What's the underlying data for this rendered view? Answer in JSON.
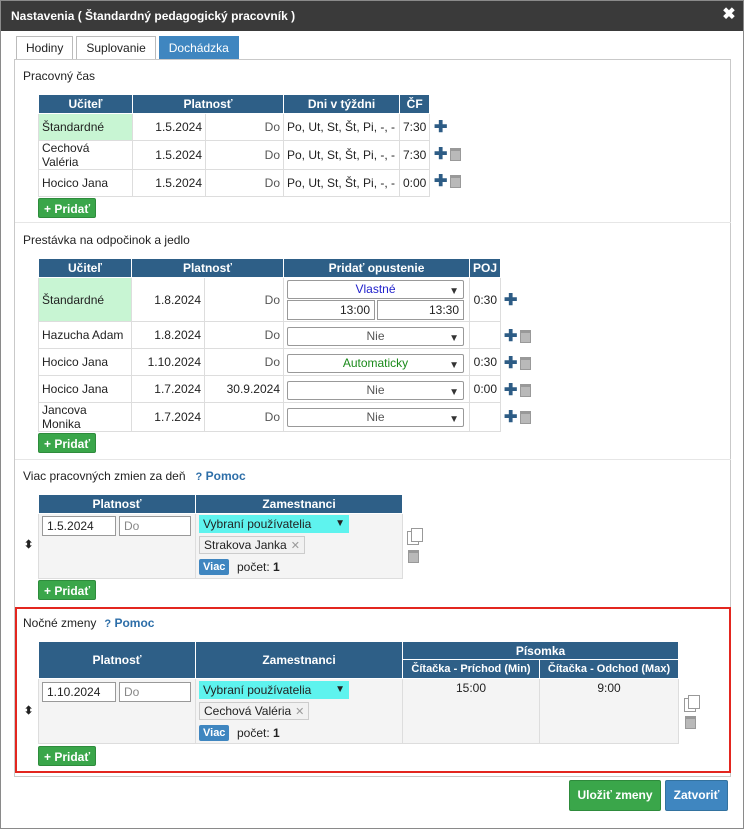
{
  "dialog": {
    "title": "Nastavenia ( Štandardný pedagogický pracovník )"
  },
  "tabs": [
    {
      "label": "Hodiny"
    },
    {
      "label": "Suplovanie"
    },
    {
      "label": "Dochádzka"
    }
  ],
  "work_time": {
    "title": "Pracovný čas",
    "headers": {
      "teacher": "Učiteľ",
      "validity": "Platnosť",
      "days": "Dni v týždni",
      "cf": "ČF"
    },
    "rows": [
      {
        "teacher": "Štandardné",
        "from": "1.5.2024",
        "to": "Do",
        "days": "Po, Ut, St, Št, Pi, -, -",
        "cf": "7:30"
      },
      {
        "teacher": "Cechová Valéria",
        "from": "1.5.2024",
        "to": "Do",
        "days": "Po, Ut, St, Št, Pi, -, -",
        "cf": "7:30"
      },
      {
        "teacher": "Hocico Jana",
        "from": "1.5.2024",
        "to": "Do",
        "days": "Po, Ut, St, Št, Pi, -, -",
        "cf": "0:00"
      }
    ],
    "add_label": "+ Pridať"
  },
  "break": {
    "title": "Prestávka na odpočinok a jedlo",
    "headers": {
      "teacher": "Učiteľ",
      "validity": "Platnosť",
      "add_leave": "Pridať opustenie",
      "poj": "POJ"
    },
    "rows": [
      {
        "teacher": "Štandardné",
        "from": "1.8.2024",
        "to": "Do",
        "select": "Vlastné",
        "time_from": "13:00",
        "time_to": "13:30",
        "poj": "0:30"
      },
      {
        "teacher": "Hazucha Adam",
        "from": "1.8.2024",
        "to": "Do",
        "select": "Nie",
        "poj": ""
      },
      {
        "teacher": "Hocico Jana",
        "from": "1.10.2024",
        "to": "Do",
        "select": "Automaticky",
        "poj": "0:30"
      },
      {
        "teacher": "Hocico Jana",
        "from": "1.7.2024",
        "to": "30.9.2024",
        "select": "Nie",
        "poj": "0:00"
      },
      {
        "teacher": "Jancova Monika",
        "from": "1.7.2024",
        "to": "Do",
        "select": "Nie",
        "poj": ""
      }
    ],
    "add_label": "+ Pridať"
  },
  "multi_shift": {
    "title": "Viac pracovných zmien za deň",
    "help": "Pomoc",
    "headers": {
      "validity": "Platnosť",
      "employees": "Zamestnanci"
    },
    "row": {
      "from": "1.5.2024",
      "to_placeholder": "Do",
      "users_select": "Vybraní používatelia",
      "chip": "Strakova Janka",
      "more": "Viac",
      "count_label": "počet:",
      "count": "1"
    },
    "add_label": "+ Pridať"
  },
  "night_shift": {
    "title": "Nočné zmeny",
    "help": "Pomoc",
    "headers": {
      "validity": "Platnosť",
      "employees": "Zamestnanci",
      "group": "Písomka",
      "arrival": "Čítačka - Príchod (Min)",
      "departure": "Čítačka - Odchod (Max)"
    },
    "row": {
      "from": "1.10.2024",
      "to_placeholder": "Do",
      "users_select": "Vybraní používatelia",
      "chip": "Cechová Valéria",
      "more": "Viac",
      "count_label": "počet:",
      "count": "1",
      "arrival": "15:00",
      "departure": "9:00"
    },
    "add_label": "+ Pridať"
  },
  "footer": {
    "save": "Uložiť zmeny",
    "close": "Zatvoriť"
  }
}
